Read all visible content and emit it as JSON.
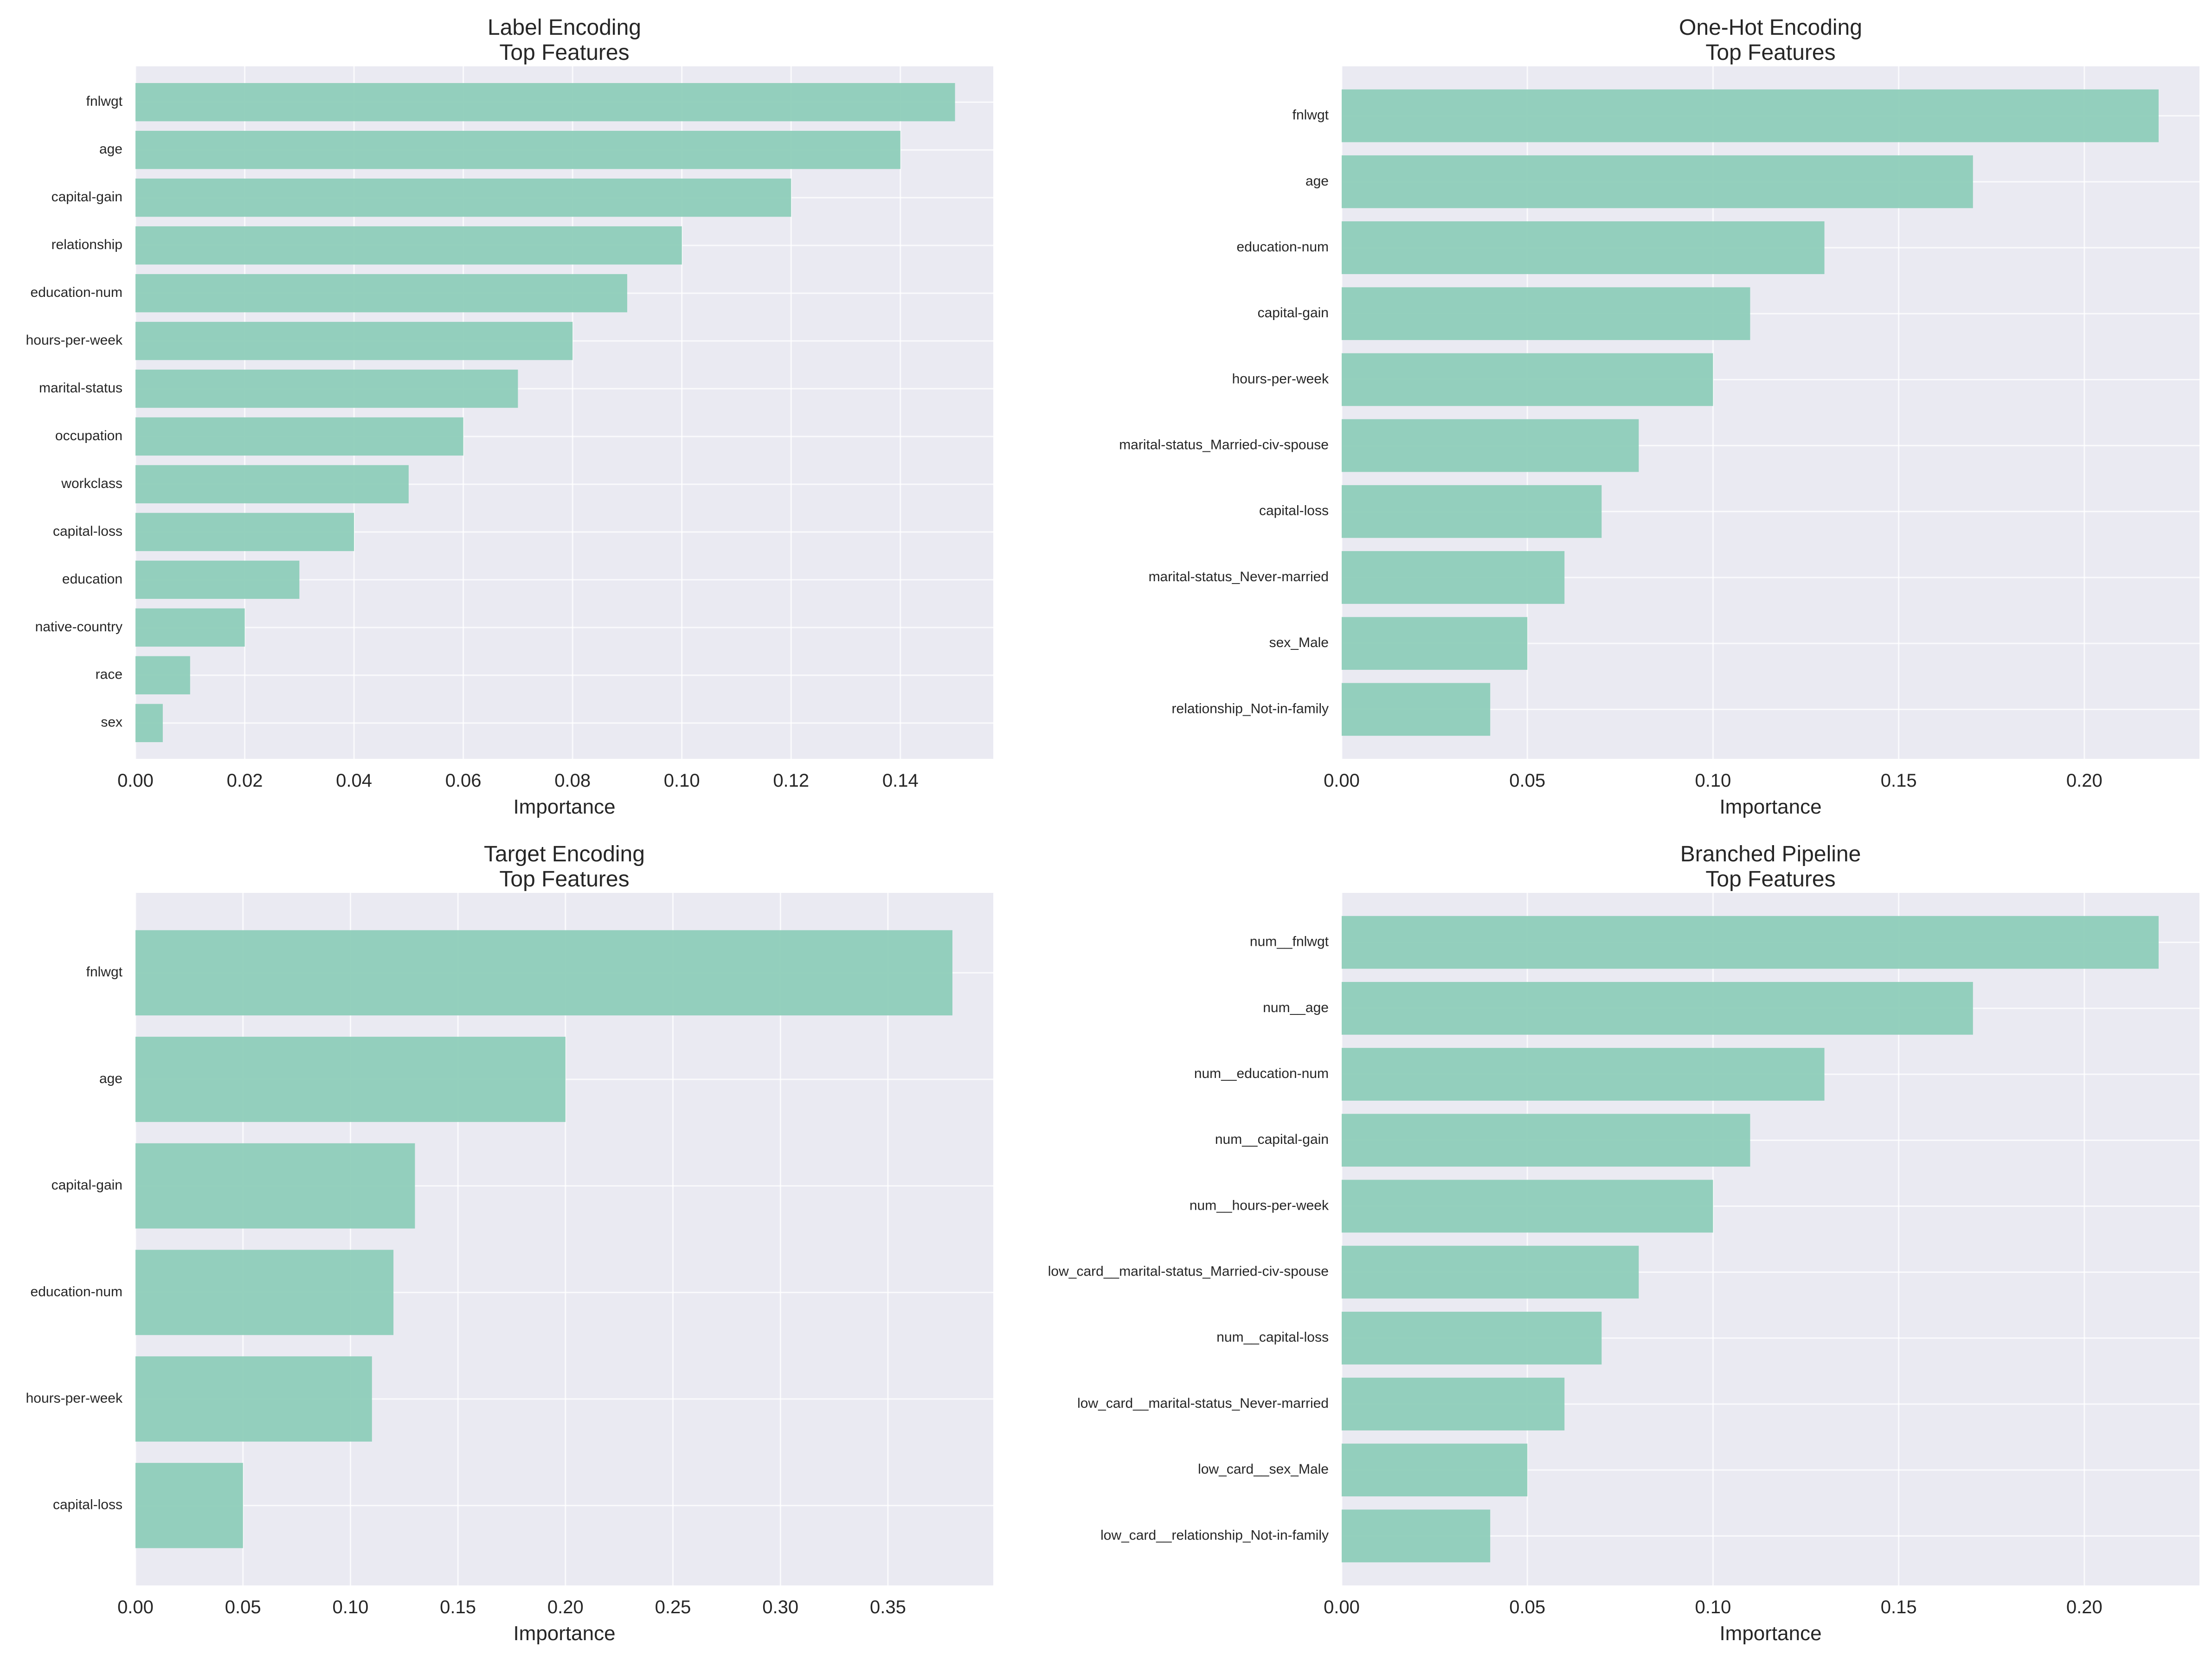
{
  "figure": {
    "colors": {
      "bar": "#8ecdb9",
      "plot_bg": "#eaeaf2",
      "grid": "#ffffff",
      "text": "#262626"
    }
  },
  "chart_data": [
    {
      "type": "bar",
      "orientation": "horizontal",
      "title": "Label Encoding",
      "subtitle": "Top Features",
      "xlabel": "Importance",
      "ylabel": "",
      "xlim": [
        0,
        0.157
      ],
      "xticks": [
        0.0,
        0.02,
        0.04,
        0.06,
        0.08,
        0.1,
        0.12,
        0.14
      ],
      "xtick_labels": [
        "0.00",
        "0.02",
        "0.04",
        "0.06",
        "0.08",
        "0.10",
        "0.12",
        "0.14"
      ],
      "grid": true,
      "categories": [
        "fnlwgt",
        "age",
        "capital-gain",
        "relationship",
        "education-num",
        "hours-per-week",
        "marital-status",
        "occupation",
        "workclass",
        "capital-loss",
        "education",
        "native-country",
        "race",
        "sex"
      ],
      "values": [
        0.15,
        0.14,
        0.12,
        0.1,
        0.09,
        0.08,
        0.07,
        0.06,
        0.05,
        0.04,
        0.03,
        0.02,
        0.01,
        0.005
      ]
    },
    {
      "type": "bar",
      "orientation": "horizontal",
      "title": "One-Hot Encoding",
      "subtitle": "Top Features",
      "xlabel": "Importance",
      "ylabel": "",
      "xlim": [
        0,
        0.231
      ],
      "xticks": [
        0.0,
        0.05,
        0.1,
        0.15,
        0.2
      ],
      "xtick_labels": [
        "0.00",
        "0.05",
        "0.10",
        "0.15",
        "0.20"
      ],
      "grid": true,
      "categories": [
        "fnlwgt",
        "age",
        "education-num",
        "capital-gain",
        "hours-per-week",
        "marital-status_Married-civ-spouse",
        "capital-loss",
        "marital-status_Never-married",
        "sex_Male",
        "relationship_Not-in-family"
      ],
      "values": [
        0.22,
        0.17,
        0.13,
        0.11,
        0.1,
        0.08,
        0.07,
        0.06,
        0.05,
        0.04
      ]
    },
    {
      "type": "bar",
      "orientation": "horizontal",
      "title": "Target Encoding",
      "subtitle": "Top Features",
      "xlabel": "Importance",
      "ylabel": "",
      "xlim": [
        0,
        0.399
      ],
      "xticks": [
        0.0,
        0.05,
        0.1,
        0.15,
        0.2,
        0.25,
        0.3,
        0.35
      ],
      "xtick_labels": [
        "0.00",
        "0.05",
        "0.10",
        "0.15",
        "0.20",
        "0.25",
        "0.30",
        "0.35"
      ],
      "grid": true,
      "categories": [
        "fnlwgt",
        "age",
        "capital-gain",
        "education-num",
        "hours-per-week",
        "capital-loss"
      ],
      "values": [
        0.38,
        0.2,
        0.13,
        0.12,
        0.11,
        0.05
      ]
    },
    {
      "type": "bar",
      "orientation": "horizontal",
      "title": "Branched Pipeline",
      "subtitle": "Top Features",
      "xlabel": "Importance",
      "ylabel": "",
      "xlim": [
        0,
        0.231
      ],
      "xticks": [
        0.0,
        0.05,
        0.1,
        0.15,
        0.2
      ],
      "xtick_labels": [
        "0.00",
        "0.05",
        "0.10",
        "0.15",
        "0.20"
      ],
      "grid": true,
      "categories": [
        "num__fnlwgt",
        "num__age",
        "num__education-num",
        "num__capital-gain",
        "num__hours-per-week",
        "low_card__marital-status_Married-civ-spouse",
        "num__capital-loss",
        "low_card__marital-status_Never-married",
        "low_card__sex_Male",
        "low_card__relationship_Not-in-family"
      ],
      "values": [
        0.22,
        0.17,
        0.13,
        0.11,
        0.1,
        0.08,
        0.07,
        0.06,
        0.05,
        0.04
      ]
    }
  ]
}
